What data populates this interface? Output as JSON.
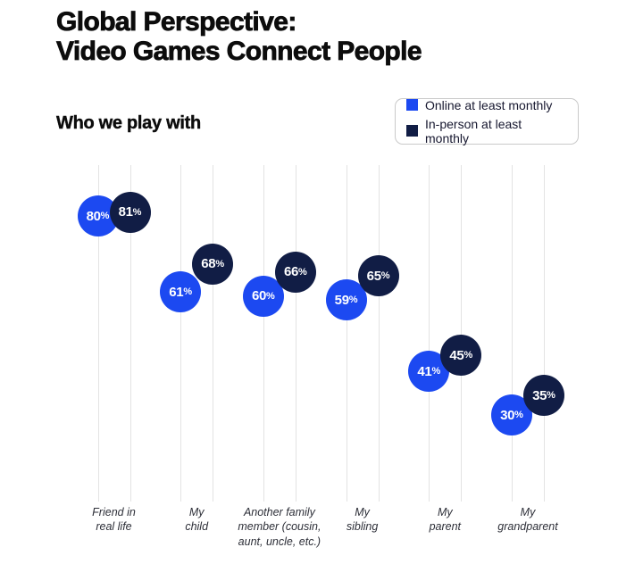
{
  "header": {
    "title_line1": "Global Perspective:",
    "title_line2": "Video Games Connect People"
  },
  "chart_data": {
    "type": "scatter",
    "title": "Who we play with",
    "categories": [
      "Friend in real life",
      "My child",
      "Another family member (cousin, aunt, uncle, etc.)",
      "My sibling",
      "My parent",
      "My grandparent"
    ],
    "category_label_lines": [
      [
        "Friend in",
        "real life"
      ],
      [
        "My",
        "child"
      ],
      [
        "Another family",
        "member (cousin,",
        "aunt, uncle, etc.)"
      ],
      [
        "My",
        "sibling"
      ],
      [
        "My",
        "parent"
      ],
      [
        "My",
        "grandparent"
      ]
    ],
    "series": [
      {
        "name": "Online at least monthly",
        "color": "#1c49f1",
        "values": [
          80,
          61,
          60,
          59,
          41,
          30
        ]
      },
      {
        "name": "In-person at least monthly",
        "color": "#111d45",
        "values": [
          81,
          68,
          66,
          65,
          45,
          35
        ]
      }
    ],
    "value_suffix": "%",
    "ylim": [
      0,
      100
    ],
    "grid": "vertical-per-point",
    "legend_position": "top-right"
  }
}
